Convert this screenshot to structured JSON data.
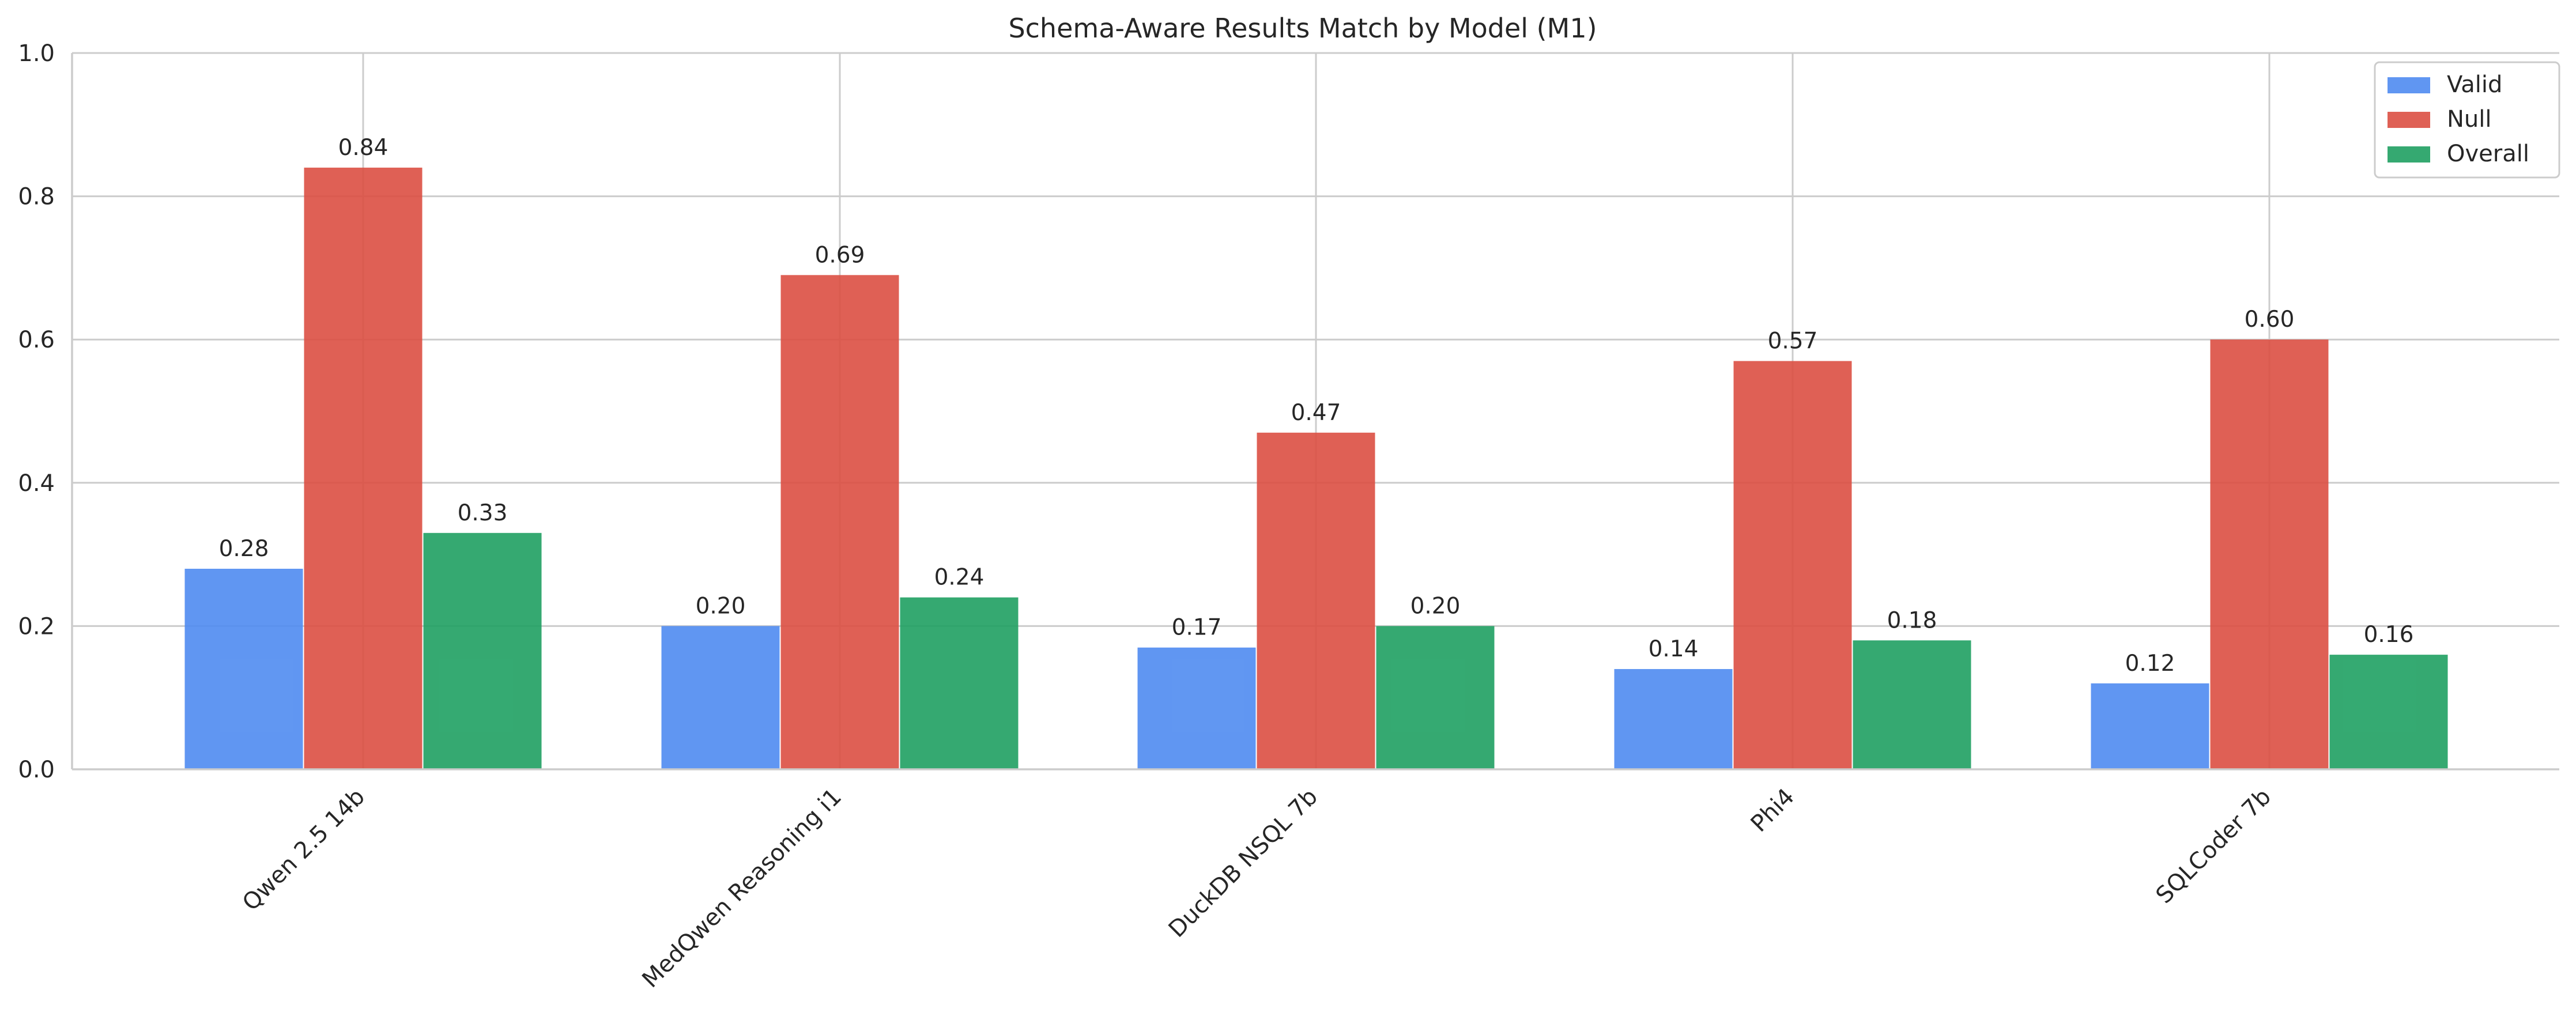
{
  "chart_data": {
    "type": "bar",
    "title": "Schema-Aware Results Match by Model (M1)",
    "xlabel": "",
    "ylabel": "",
    "ylim": [
      0,
      1.0
    ],
    "yticks": [
      0.0,
      0.2,
      0.4,
      0.6,
      0.8,
      1.0
    ],
    "ytick_labels": [
      "0.0",
      "0.2",
      "0.4",
      "0.6",
      "0.8",
      "1.0"
    ],
    "grid": true,
    "legend_position": "top-right",
    "categories": [
      "Qwen 2.5 14b",
      "MedQwen Reasoning i1",
      "DuckDB NSQL 7b",
      "Phi4",
      "SQLCoder 7b"
    ],
    "series": [
      {
        "name": "Valid",
        "color": "#4f8bf1",
        "values": [
          0.28,
          0.2,
          0.17,
          0.14,
          0.12
        ],
        "labels": [
          "0.28",
          "0.20",
          "0.17",
          "0.14",
          "0.12"
        ]
      },
      {
        "name": "Null",
        "color": "#dc4f42",
        "values": [
          0.84,
          0.69,
          0.47,
          0.57,
          0.6
        ],
        "labels": [
          "0.84",
          "0.69",
          "0.47",
          "0.57",
          "0.60"
        ]
      },
      {
        "name": "Overall",
        "color": "#1fa062",
        "values": [
          0.33,
          0.24,
          0.2,
          0.18,
          0.16
        ],
        "labels": [
          "0.33",
          "0.24",
          "0.20",
          "0.18",
          "0.16"
        ]
      }
    ]
  }
}
